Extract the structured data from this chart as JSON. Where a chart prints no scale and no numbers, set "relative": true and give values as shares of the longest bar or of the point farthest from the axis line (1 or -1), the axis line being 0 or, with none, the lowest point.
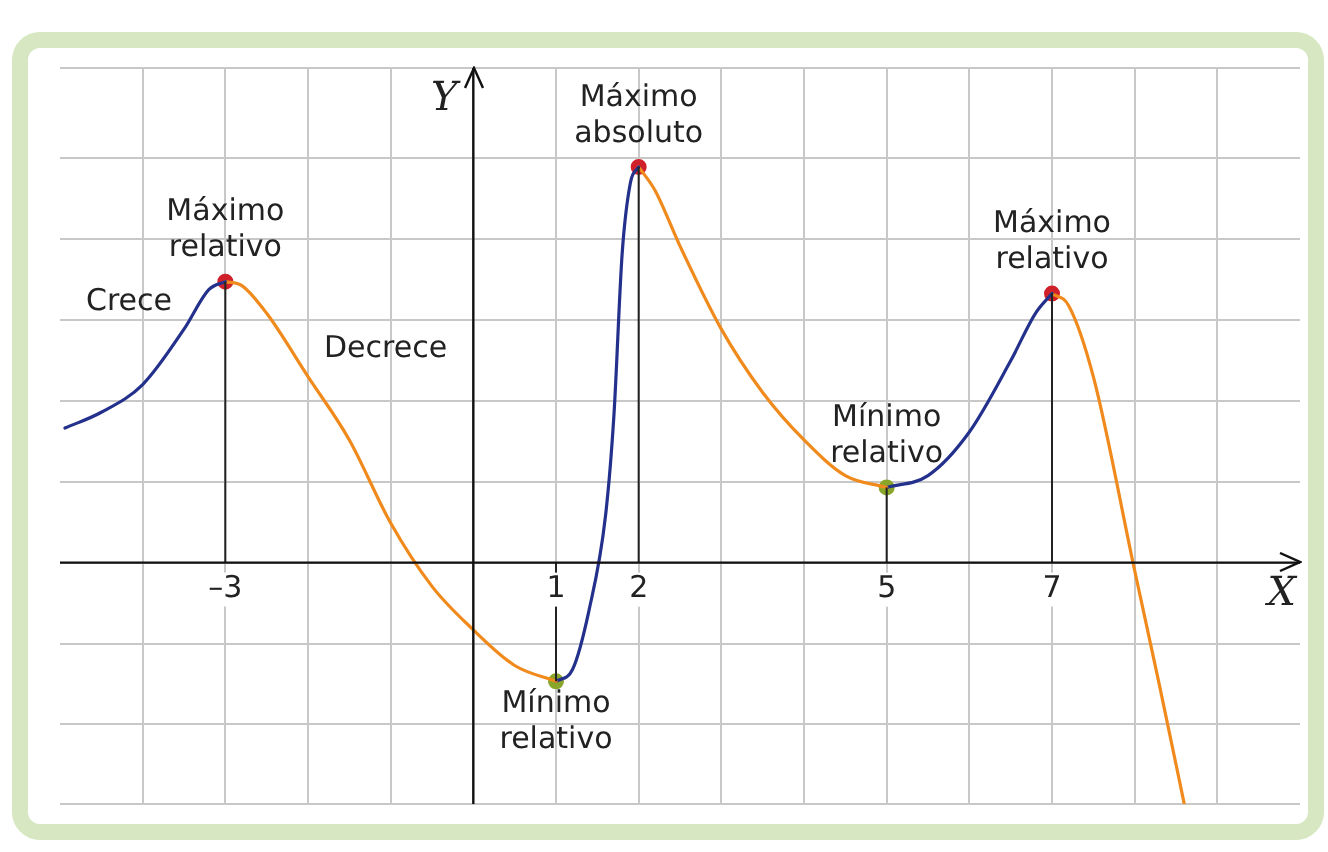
{
  "chart_data": {
    "type": "line",
    "relative": true,
    "xlabel": "X",
    "ylabel": "Y",
    "grid": true,
    "legend": false,
    "line_style": "solid",
    "xlim": [
      -5,
      10
    ],
    "xticks": [
      {
        "value": -4,
        "label": null
      },
      {
        "value": -3,
        "label": "–3"
      },
      {
        "value": -2,
        "label": null
      },
      {
        "value": -1,
        "label": null
      },
      {
        "value": 0,
        "label": null
      },
      1,
      2,
      {
        "value": 3,
        "label": null
      },
      {
        "value": 4,
        "label": null
      },
      5,
      {
        "value": 6,
        "label": null
      },
      7,
      {
        "value": 8,
        "label": null
      },
      {
        "value": 9,
        "label": null
      }
    ],
    "series": [
      {
        "name": "Crece",
        "color": "#23318c",
        "x": [
          -4.94,
          -4.5,
          -4,
          -3.5,
          -3.2,
          -3
        ],
        "values": [
          0.34,
          0.38,
          0.45,
          0.59,
          0.69,
          0.71
        ]
      },
      {
        "name": "Decrece",
        "color": "#f08a1c",
        "x": [
          -3,
          -2.8,
          -2.5,
          -2,
          -1.5,
          -1,
          -0.5,
          0,
          0.5,
          1
        ],
        "values": [
          0.71,
          0.7,
          0.63,
          0.47,
          0.31,
          0.1,
          -0.06,
          -0.17,
          -0.26,
          -0.3
        ]
      },
      {
        "color": "#23318c",
        "x": [
          1,
          1.2,
          1.4,
          1.6,
          1.7,
          1.8,
          1.9,
          2
        ],
        "values": [
          -0.3,
          -0.27,
          -0.12,
          0.12,
          0.37,
          0.78,
          0.96,
          1
        ]
      },
      {
        "color": "#f08a1c",
        "x": [
          2,
          2.2,
          2.5,
          3,
          3.5,
          4,
          4.5,
          5
        ],
        "values": [
          1,
          0.94,
          0.8,
          0.59,
          0.43,
          0.31,
          0.22,
          0.19
        ]
      },
      {
        "color": "#23318c",
        "x": [
          5,
          5.5,
          6,
          6.5,
          6.8,
          7
        ],
        "values": [
          0.19,
          0.22,
          0.33,
          0.51,
          0.63,
          0.68
        ]
      },
      {
        "color": "#f08a1c",
        "x": [
          7,
          7.2,
          7.5,
          8,
          8.3,
          8.6
        ],
        "values": [
          0.68,
          0.65,
          0.47,
          -0.02,
          -0.31,
          -0.61
        ]
      },
      {
        "type": "scatter",
        "color": "#d0202a",
        "marker": "circle",
        "x": [
          -3,
          2,
          7
        ],
        "values": [
          0.71,
          1,
          0.68
        ]
      },
      {
        "type": "scatter",
        "color": "#8aa62a",
        "marker": "circle",
        "x": [
          1,
          5
        ],
        "values": [
          -0.3,
          0.19
        ]
      }
    ],
    "annotations": [
      {
        "text": "Máximo relativo",
        "x": -3,
        "y": 0.71
      },
      {
        "text": "Máximo absoluto",
        "x": 2,
        "y": 1
      },
      {
        "text": "Mínimo relativo",
        "x": 5,
        "y": 0.19
      },
      {
        "text": "Máximo relativo",
        "x": 7,
        "y": 0.68
      },
      {
        "text": "Mínimo relativo",
        "x": 1,
        "y": -0.3
      }
    ]
  }
}
